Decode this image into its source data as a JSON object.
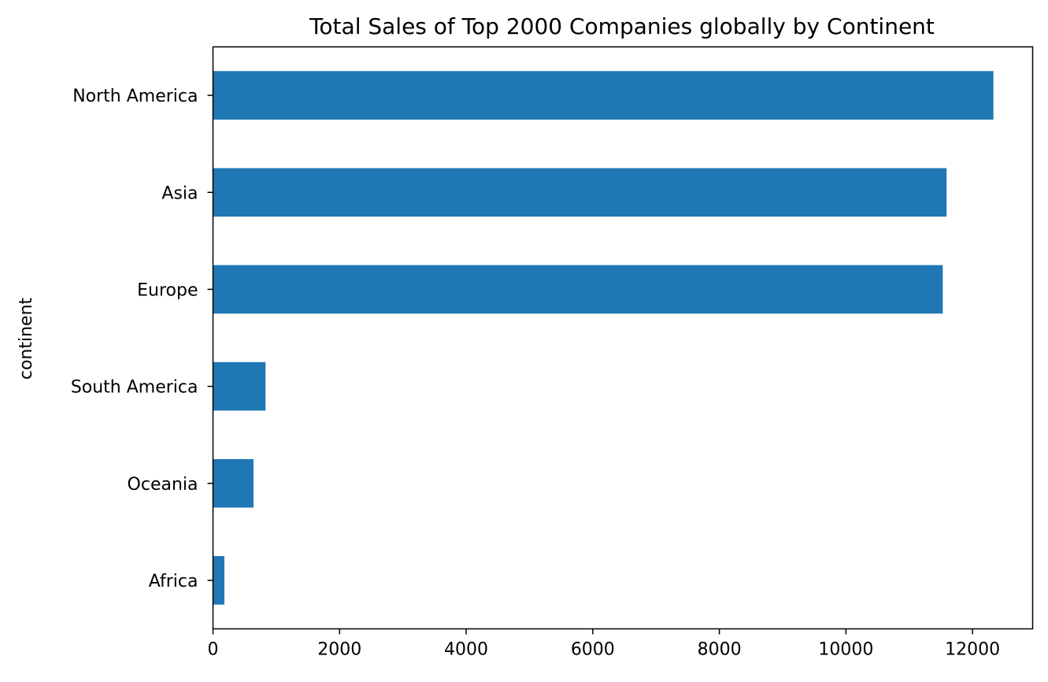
{
  "chart_data": {
    "type": "bar",
    "orientation": "horizontal",
    "title": "Total Sales of Top 2000 Companies globally by Continent",
    "xlabel": "",
    "ylabel": "continent",
    "categories": [
      "North America",
      "Asia",
      "Europe",
      "South America",
      "Oceania",
      "Africa"
    ],
    "values": [
      12330,
      11590,
      11530,
      830,
      640,
      180
    ],
    "xlim": [
      0,
      12950
    ],
    "xticks": [
      0,
      2000,
      4000,
      6000,
      8000,
      10000,
      12000
    ],
    "xtick_labels": [
      "0",
      "2000",
      "4000",
      "6000",
      "8000",
      "10000",
      "12000"
    ],
    "bar_color": "#1f77b4",
    "grid": false,
    "legend": "none"
  }
}
